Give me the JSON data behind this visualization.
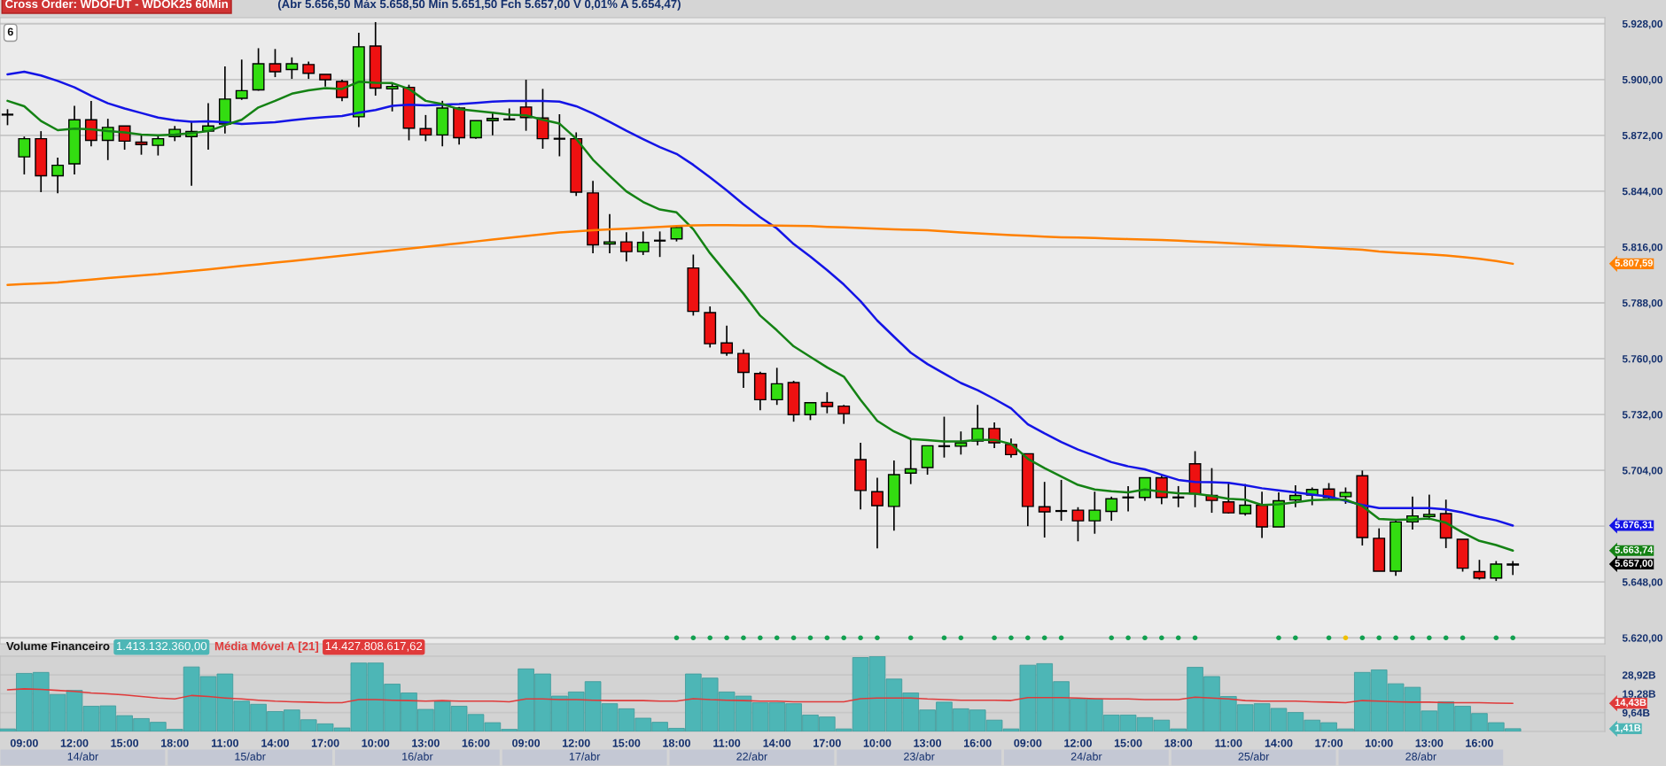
{
  "chart_data": [
    {
      "type": "candlestick",
      "title": "Cross Order: WDOFUT - WDOK25 60Min",
      "subtitle": "(Abr 5.656,50 Máx 5.658,50 Mín 5.651,50 Fch 5.657,00 V 0,01% A 5.654,47)",
      "categories": [
        null,
        null,
        null,
        null,
        null,
        null,
        null,
        null,
        null,
        null,
        null,
        null,
        null,
        null,
        null,
        null,
        null,
        null,
        null,
        null,
        null,
        null,
        null,
        null,
        null,
        null,
        null,
        null,
        null,
        null,
        null,
        null,
        null,
        null,
        null,
        null,
        null,
        null,
        null,
        null,
        null,
        null,
        null,
        null,
        null,
        null,
        null,
        null,
        null,
        null,
        null,
        null,
        null,
        null,
        null,
        null,
        null,
        null,
        null,
        null,
        null,
        null,
        null,
        null,
        null,
        null,
        null,
        null,
        null,
        null,
        null,
        null,
        null,
        null,
        null,
        null,
        null,
        null,
        null,
        null,
        null,
        null,
        null,
        null,
        null,
        null,
        null,
        null,
        null,
        null,
        null
      ],
      "ohlc": [
        [
          5882.4,
          5885.1,
          5877.1,
          5882.4
        ],
        [
          5861.2,
          5871.4,
          5852.4,
          5870.3
        ],
        [
          5870.3,
          5874.1,
          5843.5,
          5851.7
        ],
        [
          5851.7,
          5860.8,
          5842.9,
          5857.0
        ],
        [
          5857.7,
          5886.8,
          5852.4,
          5879.8
        ],
        [
          5879.8,
          5889.3,
          5866.5,
          5869.5
        ],
        [
          5869.5,
          5880.3,
          5859.6,
          5876.0
        ],
        [
          5876.7,
          5876.7,
          5864.8,
          5869.1
        ],
        [
          5868.6,
          5872.4,
          5862.3,
          5867.4
        ],
        [
          5867.0,
          5872.4,
          5861.9,
          5870.3
        ],
        [
          5871.4,
          5876.7,
          5869.1,
          5875.0
        ],
        [
          5871.4,
          5879.2,
          5846.7,
          5873.9
        ],
        [
          5874.1,
          5888.1,
          5864.8,
          5876.7
        ],
        [
          5877.7,
          5906.6,
          5872.9,
          5890.2
        ],
        [
          5890.6,
          5910.0,
          5889.8,
          5894.4
        ],
        [
          5894.8,
          5915.7,
          5894.4,
          5907.9
        ],
        [
          5907.9,
          5915.3,
          5901.2,
          5903.9
        ],
        [
          5905.0,
          5911.1,
          5900.3,
          5907.9
        ],
        [
          5907.5,
          5909.0,
          5900.3,
          5903.1
        ],
        [
          5902.6,
          5902.6,
          5896.5,
          5899.9
        ],
        [
          5899.0,
          5899.9,
          5889.1,
          5891.0
        ],
        [
          5881.3,
          5923.4,
          5876.2,
          5916.4
        ],
        [
          5916.8,
          5928.8,
          5891.9,
          5895.7
        ],
        [
          5895.3,
          5898.6,
          5884.0,
          5896.5
        ],
        [
          5896.1,
          5897.4,
          5869.5,
          5875.6
        ],
        [
          5875.4,
          5882.2,
          5869.1,
          5872.2
        ],
        [
          5872.2,
          5889.3,
          5866.5,
          5885.7
        ],
        [
          5885.7,
          5886.2,
          5867.4,
          5870.8
        ],
        [
          5870.8,
          5879.4,
          5870.3,
          5879.4
        ],
        [
          5879.4,
          5883.8,
          5872.0,
          5880.5
        ],
        [
          5880.0,
          5885.5,
          5879.6,
          5880.0
        ],
        [
          5886.2,
          5899.9,
          5874.3,
          5880.9
        ],
        [
          5880.7,
          5895.3,
          5865.3,
          5870.3
        ],
        [
          5870.3,
          5882.6,
          5861.5,
          5870.3
        ],
        [
          5870.3,
          5873.5,
          5841.6,
          5843.5
        ],
        [
          5843.1,
          5849.2,
          5812.9,
          5817.1
        ],
        [
          5817.5,
          5832.5,
          5812.9,
          5818.6
        ],
        [
          5818.6,
          5823.4,
          5808.8,
          5813.7
        ],
        [
          5813.7,
          5823.8,
          5812.0,
          5818.3
        ],
        [
          5819.2,
          5823.8,
          5811.0,
          5819.2
        ],
        [
          5820.1,
          5826.8,
          5818.8,
          5825.8
        ],
        [
          5805.5,
          5812.2,
          5781.6,
          5783.7
        ],
        [
          5783.1,
          5786.2,
          5765.6,
          5767.5
        ],
        [
          5767.9,
          5776.5,
          5761.5,
          5762.8
        ],
        [
          5762.6,
          5764.7,
          5745.3,
          5753.1
        ],
        [
          5752.6,
          5753.5,
          5734.1,
          5739.4
        ],
        [
          5739.4,
          5755.4,
          5736.8,
          5747.4
        ],
        [
          5748.0,
          5748.9,
          5728.4,
          5731.9
        ],
        [
          5731.9,
          5737.9,
          5729.2,
          5737.9
        ],
        [
          5738.1,
          5743.2,
          5732.6,
          5736.0
        ],
        [
          5736.2,
          5736.8,
          5727.3,
          5732.4
        ],
        [
          5709.4,
          5717.8,
          5684.4,
          5693.9
        ],
        [
          5693.3,
          5700.3,
          5664.8,
          5686.3
        ],
        [
          5685.9,
          5708.9,
          5673.7,
          5701.8
        ],
        [
          5702.6,
          5719.9,
          5697.1,
          5704.7
        ],
        [
          5705.4,
          5716.3,
          5701.8,
          5716.3
        ],
        [
          5716.1,
          5730.9,
          5710.4,
          5716.1
        ],
        [
          5716.1,
          5723.5,
          5711.9,
          5717.8
        ],
        [
          5718.7,
          5736.8,
          5716.5,
          5725.0
        ],
        [
          5725.0,
          5728.0,
          5715.1,
          5717.8
        ],
        [
          5717.0,
          5719.9,
          5710.4,
          5711.9
        ],
        [
          5712.3,
          5712.3,
          5676.0,
          5685.9
        ],
        [
          5685.7,
          5698.2,
          5670.3,
          5683.2
        ],
        [
          5683.6,
          5699.2,
          5678.7,
          5683.6
        ],
        [
          5684.0,
          5685.5,
          5668.4,
          5678.7
        ],
        [
          5678.7,
          5693.3,
          5672.2,
          5684.0
        ],
        [
          5683.4,
          5690.8,
          5678.7,
          5689.7
        ],
        [
          5690.4,
          5696.1,
          5683.4,
          5690.4
        ],
        [
          5690.4,
          5700.3,
          5688.7,
          5700.3
        ],
        [
          5700.3,
          5701.3,
          5687.0,
          5690.4
        ],
        [
          5690.4,
          5696.1,
          5685.5,
          5690.4
        ],
        [
          5707.3,
          5713.6,
          5685.5,
          5692.2
        ],
        [
          5691.4,
          5705.1,
          5682.7,
          5688.9
        ],
        [
          5688.2,
          5698.2,
          5682.3,
          5682.7
        ],
        [
          5682.3,
          5697.1,
          5681.3,
          5686.5
        ],
        [
          5686.5,
          5693.3,
          5670.1,
          5675.6
        ],
        [
          5675.6,
          5692.9,
          5675.6,
          5688.7
        ],
        [
          5689.1,
          5696.5,
          5685.5,
          5691.4
        ],
        [
          5691.6,
          5695.4,
          5686.5,
          5694.4
        ],
        [
          5694.6,
          5697.6,
          5689.3,
          5690.4
        ],
        [
          5690.8,
          5695.4,
          5687.2,
          5692.9
        ],
        [
          5701.3,
          5703.9,
          5666.3,
          5670.3
        ],
        [
          5669.9,
          5674.9,
          5653.4,
          5653.4
        ],
        [
          5653.4,
          5678.7,
          5651.1,
          5678.1
        ],
        [
          5678.1,
          5690.8,
          5674.3,
          5681.1
        ],
        [
          5680.8,
          5691.8,
          5679.1,
          5681.9
        ],
        [
          5682.3,
          5689.3,
          5665.0,
          5670.1
        ],
        [
          5669.4,
          5669.4,
          5653.2,
          5654.9
        ],
        [
          5653.2,
          5659.1,
          5649.2,
          5650.0
        ],
        [
          5650.0,
          5658.5,
          5648.5,
          5657.0
        ],
        [
          5656.5,
          5658.5,
          5651.5,
          5657.0
        ]
      ],
      "colors": [
        "#000000",
        "#33dd11",
        "#ee1111",
        "#33dd11",
        "#33dd11",
        "#ee1111",
        "#33dd11",
        "#ee1111",
        "#ee1111",
        "#33dd11",
        "#33dd11",
        "#33dd11",
        "#33dd11",
        "#33dd11",
        "#33dd11",
        "#33dd11",
        "#ee1111",
        "#33dd11",
        "#ee1111",
        "#ee1111",
        "#ee1111",
        "#33dd11",
        "#ee1111",
        "#33dd11",
        "#ee1111",
        "#ee1111",
        "#33dd11",
        "#ee1111",
        "#33dd11",
        "#33dd11",
        "#000000",
        "#ee1111",
        "#ee1111",
        "#000000",
        "#ee1111",
        "#ee1111",
        "#33dd11",
        "#ee1111",
        "#33dd11",
        "#000000",
        "#33dd11",
        "#ee1111",
        "#ee1111",
        "#ee1111",
        "#ee1111",
        "#ee1111",
        "#33dd11",
        "#ee1111",
        "#33dd11",
        "#ee1111",
        "#ee1111",
        "#ee1111",
        "#ee1111",
        "#33dd11",
        "#33dd11",
        "#33dd11",
        "#000000",
        "#33dd11",
        "#33dd11",
        "#ee1111",
        "#ee1111",
        "#ee1111",
        "#ee1111",
        "#000000",
        "#ee1111",
        "#33dd11",
        "#33dd11",
        "#000000",
        "#33dd11",
        "#ee1111",
        "#000000",
        "#ee1111",
        "#ee1111",
        "#ee1111",
        "#33dd11",
        "#ee1111",
        "#33dd11",
        "#33dd11",
        "#33dd11",
        "#ee1111",
        "#33dd11",
        "#ee1111",
        "#ee1111",
        "#33dd11",
        "#33dd11",
        "#33dd11",
        "#ee1111",
        "#ee1111",
        "#ee1111",
        "#33dd11",
        "#000000"
      ],
      "series": [
        {
          "type": "line",
          "color": "#1414e6",
          "values": [
            5902.6,
            5903.9,
            5902.0,
            5899.3,
            5896.1,
            5891.9,
            5888.1,
            5885.5,
            5883.2,
            5880.9,
            5879.6,
            5878.8,
            5879.0,
            5878.6,
            5877.7,
            5878.1,
            5878.6,
            5879.6,
            5880.5,
            5881.1,
            5881.7,
            5883.4,
            5884.7,
            5886.8,
            5887.4,
            5887.0,
            5887.4,
            5887.7,
            5888.3,
            5888.9,
            5889.3,
            5889.3,
            5889.3,
            5888.9,
            5886.6,
            5883.0,
            5878.8,
            5874.3,
            5870.1,
            5866.1,
            5862.7,
            5857.2,
            5850.9,
            5844.4,
            5837.4,
            5831.0,
            5825.3,
            5817.5,
            5811.2,
            5804.4,
            5797.2,
            5788.8,
            5779.1,
            5771.0,
            5763.0,
            5757.3,
            5752.5,
            5747.8,
            5744.2,
            5739.8,
            5735.1,
            5727.1,
            5722.5,
            5718.2,
            5714.4,
            5711.3,
            5708.1,
            5706.0,
            5704.5,
            5701.8,
            5699.2,
            5698.2,
            5698.0,
            5697.7,
            5696.5,
            5695.0,
            5693.9,
            5692.9,
            5691.8,
            5690.8,
            5688.7,
            5686.6,
            5685.1,
            5685.1,
            5685.1,
            5685.1,
            5684.4,
            5682.8,
            5680.6,
            5678.9,
            5676.31
          ]
        },
        {
          "type": "line",
          "color": "#148214",
          "values": [
            5889.3,
            5886.6,
            5879.2,
            5874.6,
            5875.4,
            5875.0,
            5874.1,
            5873.5,
            5872.4,
            5872.0,
            5872.4,
            5873.1,
            5874.1,
            5877.1,
            5879.8,
            5886.0,
            5889.3,
            5892.9,
            5894.6,
            5895.7,
            5895.3,
            5898.9,
            5898.4,
            5898.2,
            5895.3,
            5889.3,
            5887.7,
            5885.1,
            5884.3,
            5883.4,
            5882.4,
            5882.0,
            5879.8,
            5877.9,
            5870.3,
            5859.8,
            5851.7,
            5843.9,
            5838.6,
            5834.8,
            5833.4,
            5824.9,
            5812.9,
            5802.7,
            5792.6,
            5781.6,
            5774.2,
            5766.2,
            5760.9,
            5755.6,
            5751.0,
            5739.4,
            5728.8,
            5723.5,
            5719.7,
            5719.1,
            5718.5,
            5718.5,
            5719.3,
            5719.3,
            5717.2,
            5709.8,
            5705.1,
            5700.9,
            5696.7,
            5694.4,
            5693.5,
            5692.9,
            5694.4,
            5693.3,
            5692.5,
            5692.3,
            5691.2,
            5689.7,
            5689.3,
            5686.6,
            5687.0,
            5688.0,
            5689.1,
            5689.3,
            5689.3,
            5686.1,
            5679.6,
            5679.2,
            5679.4,
            5679.8,
            5677.7,
            5672.8,
            5668.6,
            5666.5,
            5663.74
          ]
        },
        {
          "type": "line",
          "color": "#ff8000",
          "values": [
            5797.0,
            5797.4,
            5797.8,
            5798.2,
            5799.0,
            5799.7,
            5800.4,
            5801.1,
            5801.8,
            5802.4,
            5803.2,
            5804.0,
            5804.8,
            5805.6,
            5806.5,
            5807.3,
            5808.2,
            5809.0,
            5809.9,
            5810.7,
            5811.6,
            5812.5,
            5813.4,
            5814.3,
            5815.2,
            5816.1,
            5817.0,
            5817.9,
            5818.8,
            5819.7,
            5820.6,
            5821.5,
            5822.4,
            5823.3,
            5823.9,
            5824.4,
            5824.8,
            5825.2,
            5825.6,
            5826.1,
            5826.5,
            5826.9,
            5827.0,
            5827.0,
            5826.9,
            5826.8,
            5826.7,
            5826.6,
            5826.5,
            5826.1,
            5825.8,
            5825.5,
            5825.2,
            5824.9,
            5824.6,
            5824.4,
            5823.9,
            5823.3,
            5822.8,
            5822.4,
            5822.0,
            5821.6,
            5821.2,
            5820.9,
            5820.7,
            5820.5,
            5820.2,
            5820.0,
            5819.7,
            5819.5,
            5819.2,
            5818.8,
            5818.4,
            5818.0,
            5817.5,
            5817.1,
            5816.8,
            5816.4,
            5816.0,
            5815.5,
            5815.1,
            5814.6,
            5813.7,
            5813.2,
            5812.8,
            5812.3,
            5811.8,
            5811.0,
            5810.1,
            5809.0,
            5807.59
          ]
        },
        {
          "type": "scatter",
          "color": "#12a050",
          "values": [
            null,
            null,
            null,
            null,
            null,
            null,
            null,
            null,
            null,
            null,
            null,
            null,
            null,
            null,
            null,
            null,
            null,
            null,
            null,
            null,
            null,
            null,
            null,
            null,
            null,
            null,
            null,
            null,
            null,
            null,
            null,
            null,
            null,
            null,
            null,
            null,
            null,
            null,
            null,
            null,
            5620,
            5620,
            5620,
            5620,
            5620,
            5620,
            5620,
            5620,
            5620,
            5620,
            5620,
            5620,
            5620,
            null,
            5620,
            null,
            5620,
            5620,
            null,
            5620,
            5620,
            5620,
            5620,
            5620,
            null,
            null,
            5620,
            5620,
            5620,
            5620,
            5620,
            5620,
            null,
            null,
            null,
            null,
            5620,
            5620,
            null,
            5620,
            null,
            5620,
            5620,
            5620,
            5620,
            5620,
            5620,
            5620,
            null,
            5620,
            5620
          ]
        },
        {
          "type": "scatter",
          "color": "#f0c000",
          "values": [
            null,
            null,
            null,
            null,
            null,
            null,
            null,
            null,
            null,
            null,
            null,
            null,
            null,
            null,
            null,
            null,
            null,
            null,
            null,
            null,
            null,
            null,
            null,
            null,
            null,
            null,
            null,
            null,
            null,
            null,
            null,
            null,
            null,
            null,
            null,
            null,
            null,
            null,
            null,
            null,
            null,
            null,
            null,
            null,
            null,
            null,
            null,
            null,
            null,
            null,
            null,
            null,
            null,
            null,
            null,
            null,
            null,
            null,
            null,
            null,
            null,
            null,
            null,
            null,
            null,
            null,
            null,
            null,
            null,
            null,
            null,
            null,
            null,
            null,
            null,
            null,
            null,
            null,
            null,
            null,
            5620,
            null,
            null,
            null,
            null,
            null,
            null,
            null,
            null,
            null,
            null
          ]
        }
      ],
      "ylim": [
        5617,
        5931
      ],
      "yticks": [
        {
          "value": 5620,
          "label": "5.620,00"
        },
        {
          "value": 5648,
          "label": "5.648,00"
        },
        {
          "value": 5676,
          "label": null
        },
        {
          "value": 5704,
          "label": "5.704,00"
        },
        {
          "value": 5732,
          "label": "5.732,00"
        },
        {
          "value": 5760,
          "label": "5.760,00"
        },
        {
          "value": 5788,
          "label": "5.788,00"
        },
        {
          "value": 5816,
          "label": "5.816,00"
        },
        {
          "value": 5844,
          "label": "5.844,00"
        },
        {
          "value": 5872,
          "label": "5.872,00"
        },
        {
          "value": 5900,
          "label": "5.900,00"
        },
        {
          "value": 5928,
          "label": "5.928,00"
        }
      ],
      "grid": "y",
      "tick_labels": "y",
      "annotations": [
        "5.676,31",
        "5.663,74",
        "5.807,59",
        "5.657,00",
        "6"
      ]
    },
    {
      "type": "bar",
      "categories": [
        null,
        "09:00",
        null,
        null,
        "12:00",
        null,
        null,
        "15:00",
        null,
        null,
        "18:00",
        null,
        null,
        "11:00",
        null,
        null,
        "14:00",
        null,
        null,
        "17:00",
        null,
        null,
        "10:00",
        null,
        null,
        "13:00",
        null,
        null,
        "16:00",
        null,
        null,
        "09:00",
        null,
        null,
        "12:00",
        null,
        null,
        "15:00",
        null,
        null,
        "18:00",
        null,
        null,
        "11:00",
        null,
        null,
        "14:00",
        null,
        null,
        "17:00",
        null,
        null,
        "10:00",
        null,
        null,
        "13:00",
        null,
        null,
        "16:00",
        null,
        null,
        "09:00",
        null,
        null,
        "12:00",
        null,
        null,
        "15:00",
        null,
        null,
        "18:00",
        null,
        null,
        "11:00",
        null,
        null,
        "14:00",
        null,
        null,
        "17:00",
        null,
        null,
        "10:00",
        null,
        null,
        "13:00",
        null,
        null,
        "16:00",
        null,
        null
      ],
      "series": [
        {
          "type": "bar",
          "name": "Volume Financeiro",
          "color": "#4db6b6",
          "values": [
            1.3,
            29.7,
            30.2,
            18.9,
            21.0,
            12.9,
            13.1,
            8.1,
            6.6,
            4.7,
            1.1,
            33.0,
            28.1,
            29.4,
            15.5,
            13.9,
            10.2,
            11.0,
            6.0,
            3.9,
            1.8,
            35.0,
            35.0,
            24.2,
            19.7,
            11.3,
            15.5,
            12.9,
            8.7,
            4.5,
            1.1,
            32.0,
            29.4,
            18.1,
            20.2,
            25.5,
            14.2,
            11.6,
            6.8,
            4.7,
            1.6,
            29.4,
            27.3,
            20.2,
            18.1,
            14.7,
            14.7,
            14.2,
            8.4,
            7.4,
            1.3,
            37.8,
            38.4,
            26.8,
            19.7,
            11.0,
            15.0,
            11.6,
            11.0,
            5.8,
            1.3,
            33.9,
            34.7,
            25.5,
            16.6,
            16.6,
            8.4,
            8.4,
            7.1,
            5.8,
            1.3,
            32.8,
            28.1,
            17.9,
            13.7,
            14.2,
            11.8,
            9.7,
            5.8,
            4.5,
            1.3,
            30.2,
            31.5,
            24.4,
            22.6,
            10.5,
            15.2,
            12.9,
            9.2,
            4.5,
            1.41
          ]
        },
        {
          "type": "line",
          "name": "Média Móvel A [21]",
          "color": "#e03a3a",
          "values": [
            21.3,
            21.8,
            21.5,
            21.0,
            20.5,
            19.7,
            19.2,
            18.7,
            17.9,
            17.1,
            16.6,
            18.4,
            17.9,
            17.1,
            16.6,
            16.0,
            15.5,
            15.2,
            15.0,
            14.7,
            14.7,
            16.3,
            16.3,
            16.0,
            15.8,
            15.5,
            15.8,
            15.5,
            15.5,
            15.5,
            15.2,
            16.6,
            16.6,
            16.3,
            16.3,
            16.0,
            15.8,
            15.8,
            15.8,
            15.5,
            15.5,
            16.8,
            16.3,
            16.0,
            15.8,
            15.5,
            15.5,
            15.2,
            15.2,
            15.2,
            15.2,
            16.8,
            17.1,
            17.1,
            17.1,
            16.6,
            16.3,
            16.0,
            16.0,
            16.0,
            15.8,
            17.3,
            17.3,
            17.3,
            17.1,
            16.8,
            16.6,
            16.6,
            16.3,
            16.3,
            16.3,
            17.6,
            17.1,
            16.6,
            15.8,
            15.5,
            15.5,
            15.5,
            15.2,
            15.0,
            14.7,
            15.8,
            15.5,
            15.2,
            15.0,
            15.0,
            14.7,
            14.7,
            14.7,
            14.5,
            14.43
          ]
        }
      ],
      "ylim": [
        0,
        38.5
      ],
      "yticks": [
        {
          "value": 9.64,
          "label": "9,64B"
        },
        {
          "value": 19.28,
          "label": "19,28B"
        },
        {
          "value": 28.92,
          "label": "28,92B"
        }
      ],
      "grid": "y",
      "legend": "top left",
      "annotations": [
        "1.413.132.360,00",
        "14.427.808.617,62",
        "1,41B",
        "14,43B",
        "14/abr",
        "15/abr",
        "16/abr",
        "17/abr",
        "22/abr",
        "23/abr",
        "24/abr",
        "25/abr",
        "28/abr"
      ]
    }
  ]
}
